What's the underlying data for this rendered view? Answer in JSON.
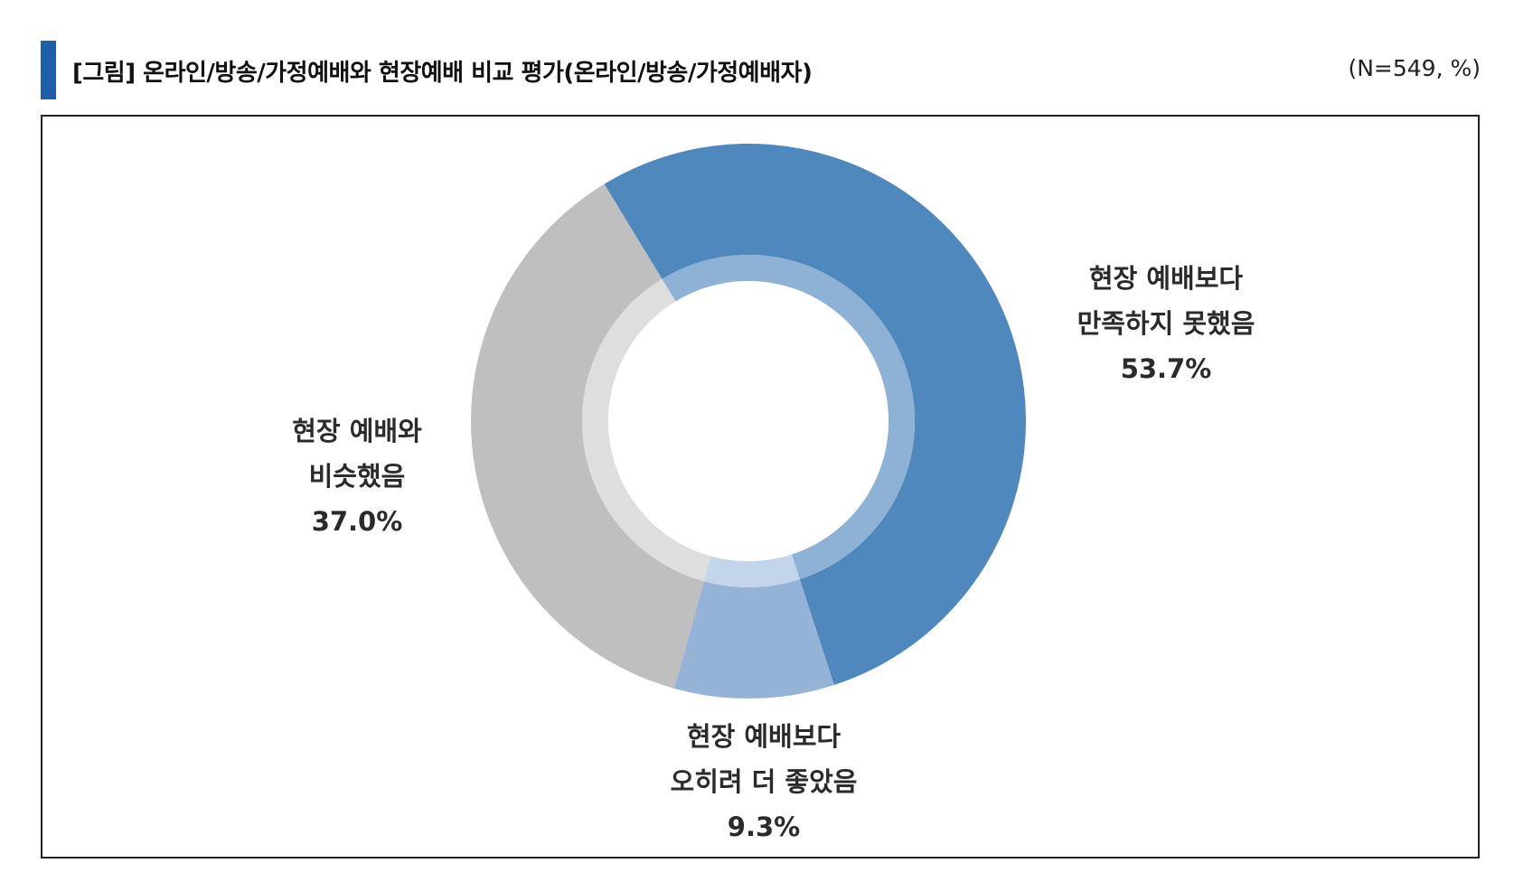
{
  "header": {
    "title": "[그림] 온라인/방송/가정예배와 현장예배 비교 평가(온라인/방송/가정예배자)",
    "note": "(N=549, %)"
  },
  "chart_data": {
    "type": "pie",
    "variant": "donut",
    "unit": "%",
    "slices": [
      {
        "label_line1": "현장 예배보다",
        "label_line2": "만족하지 못했음",
        "value": 53.7,
        "value_label": "53.7%",
        "color": "#4f88bd",
        "inner_color": "#8db2d6"
      },
      {
        "label_line1": "현장 예배보다",
        "label_line2": "오히려 더 좋았음",
        "value": 9.3,
        "value_label": "9.3%",
        "color": "#95b3d7",
        "inner_color": "#c3d5eb"
      },
      {
        "label_line1": "현장 예배와",
        "label_line2": "비슷했음",
        "value": 37.0,
        "value_label": "37.0%",
        "color": "#bfbfbf",
        "inner_color": "#dedede"
      }
    ]
  }
}
